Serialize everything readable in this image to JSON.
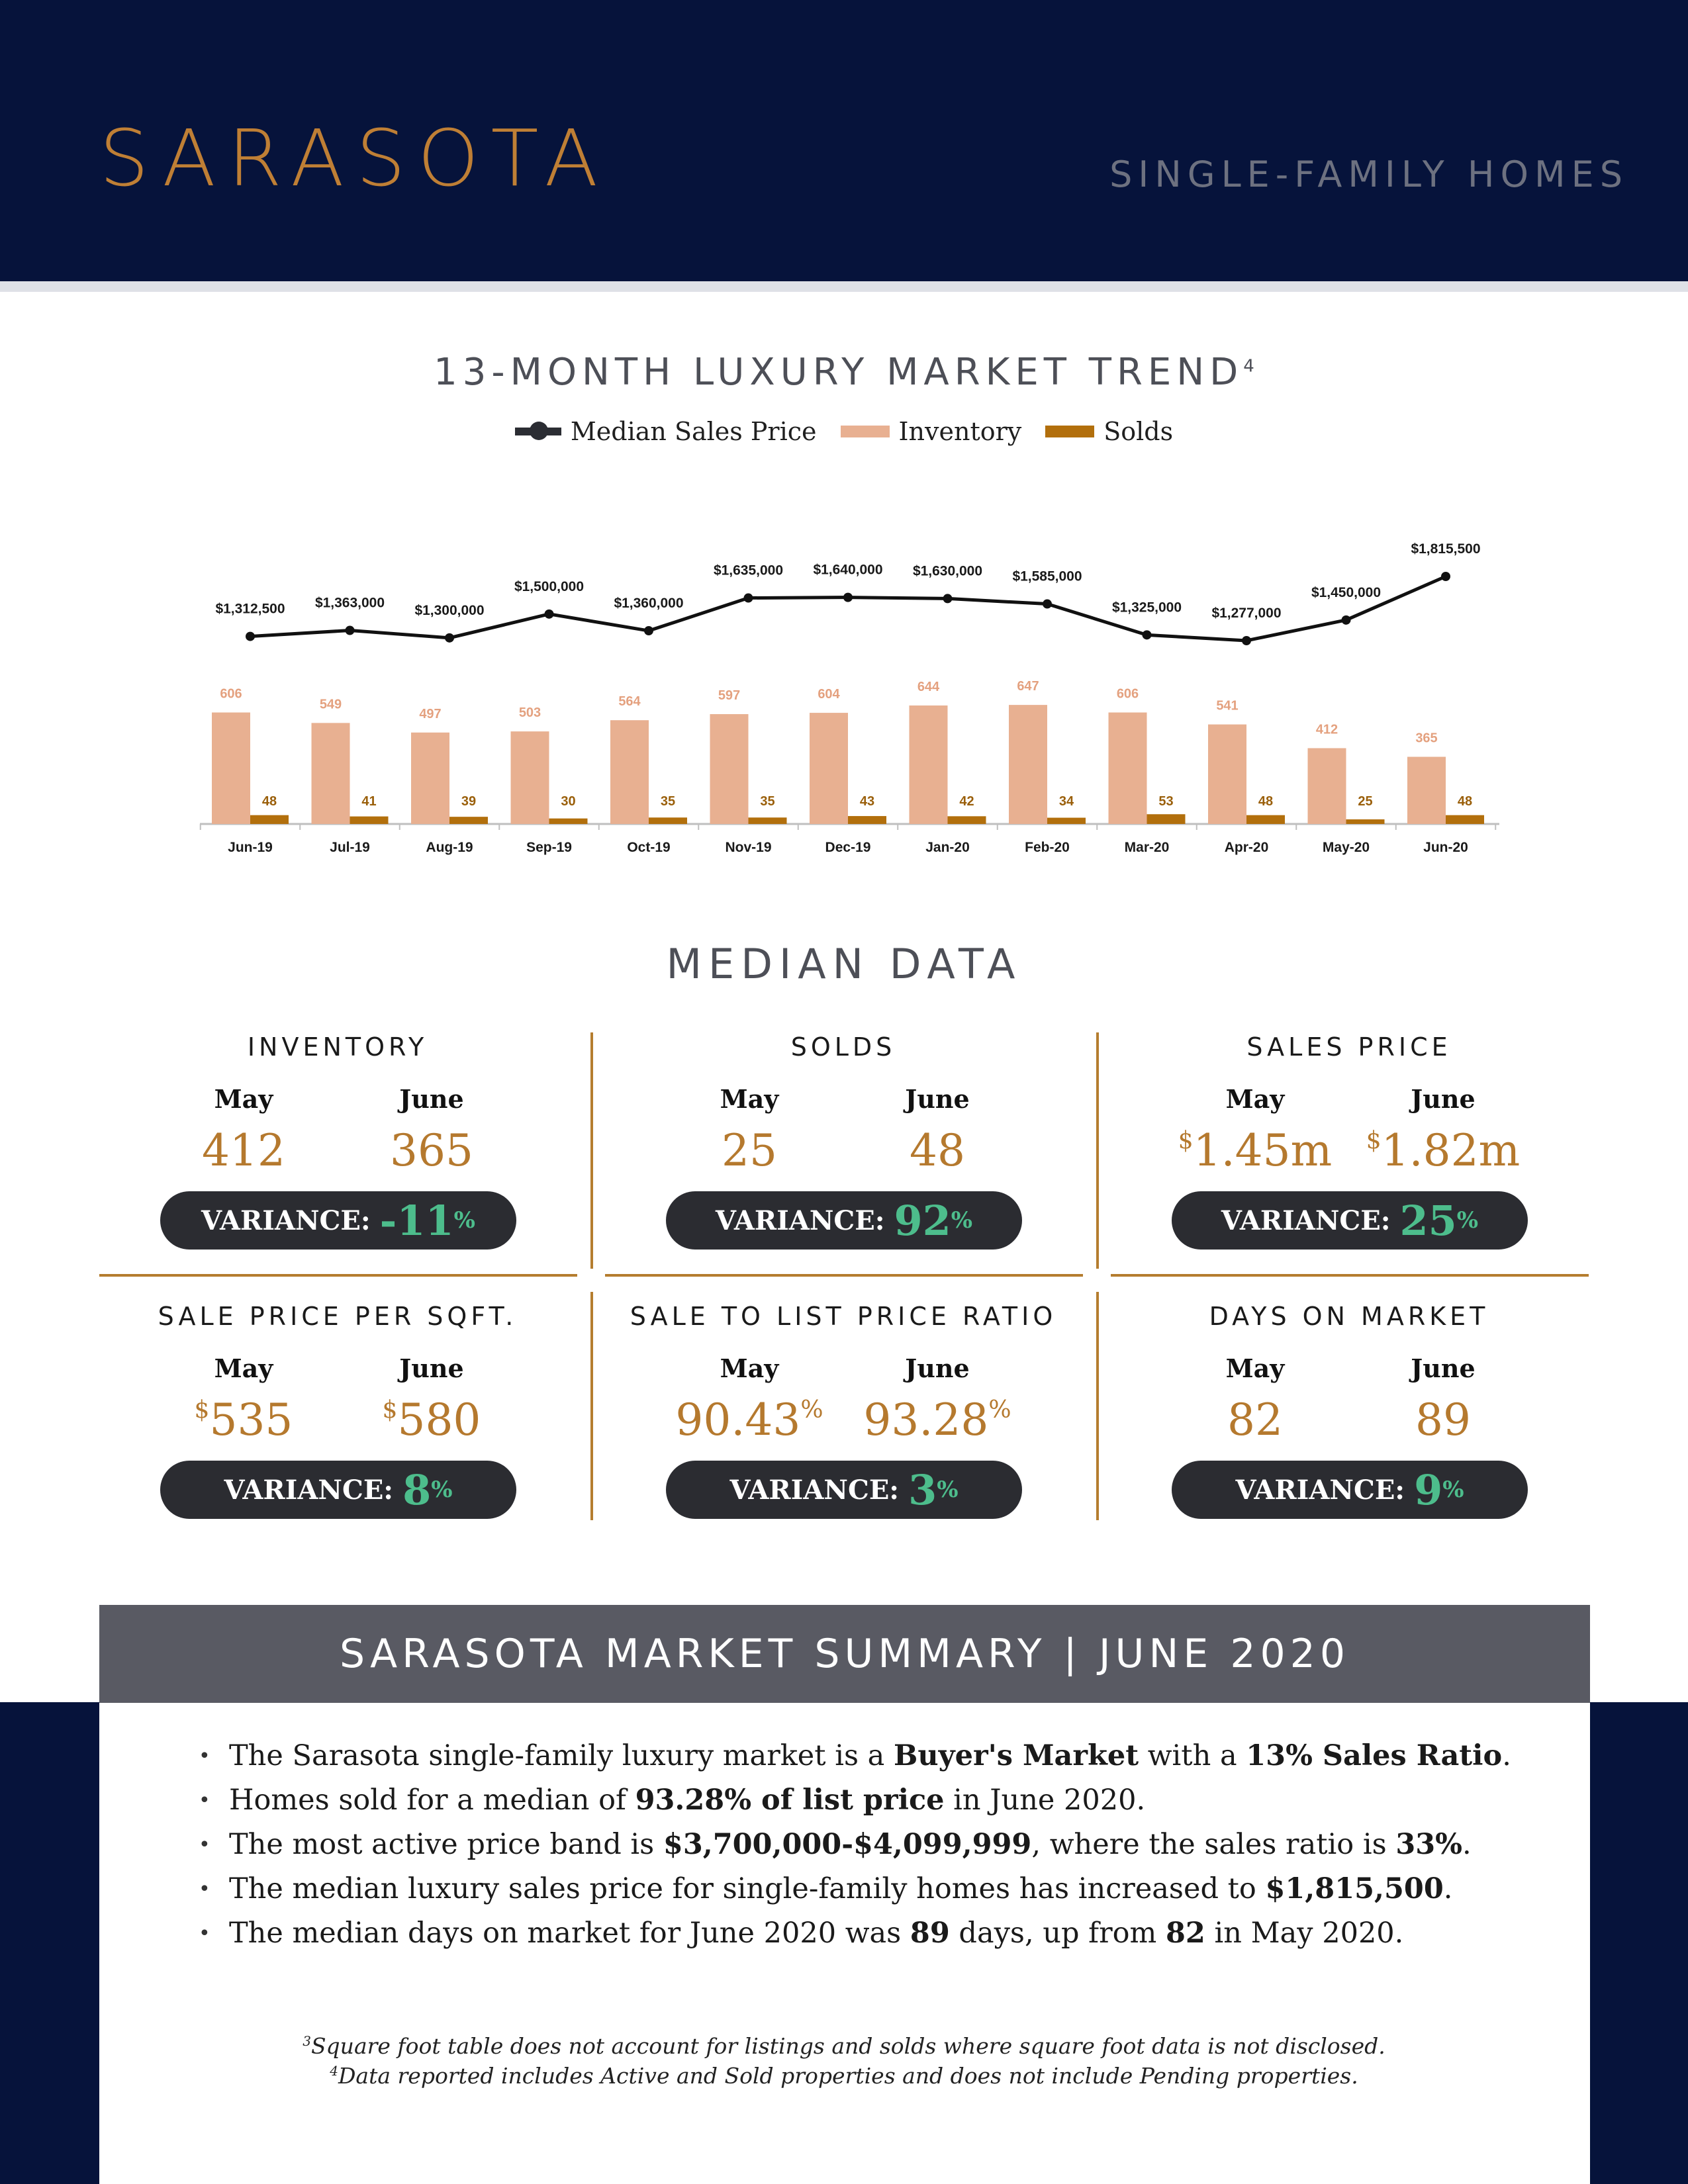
{
  "header": {
    "city": "SARASOTA",
    "subtitle": "SINGLE-FAMILY HOMES"
  },
  "trend": {
    "title": "13-MONTH LUXURY MARKET TREND",
    "title_sup": "4",
    "legend": [
      "Median Sales Price",
      "Inventory",
      "Solds"
    ]
  },
  "chart_data": {
    "type": "bar",
    "categories": [
      "Jun-19",
      "Jul-19",
      "Aug-19",
      "Sep-19",
      "Oct-19",
      "Nov-19",
      "Dec-19",
      "Jan-20",
      "Feb-20",
      "Mar-20",
      "Apr-20",
      "May-20",
      "Jun-20"
    ],
    "series": [
      {
        "name": "Median Sales Price",
        "type": "line",
        "values": [
          1312500,
          1363000,
          1300000,
          1500000,
          1360000,
          1635000,
          1640000,
          1630000,
          1585000,
          1325000,
          1277000,
          1450000,
          1815500
        ],
        "labels": [
          "$1,312,500",
          "$1,363,000",
          "$1,300,000",
          "$1,500,000",
          "$1,360,000",
          "$1,635,000",
          "$1,640,000",
          "$1,630,000",
          "$1,585,000",
          "$1,325,000",
          "$1,277,000",
          "$1,450,000",
          "$1,815,500"
        ]
      },
      {
        "name": "Inventory",
        "type": "bar",
        "values": [
          606,
          549,
          497,
          503,
          564,
          597,
          604,
          644,
          647,
          606,
          541,
          412,
          365
        ]
      },
      {
        "name": "Solds",
        "type": "bar",
        "values": [
          48,
          41,
          39,
          30,
          35,
          35,
          43,
          42,
          34,
          53,
          48,
          25,
          48
        ]
      }
    ],
    "colors": {
      "line": "#111111",
      "inventory": "#e8b091",
      "inventory_label": "#e4a17f",
      "solds": "#b26f0c",
      "solds_label": "#9a5f0a"
    },
    "grid": false,
    "legend": "top-center"
  },
  "median": {
    "title": "MEDIAN DATA",
    "month_a": "May",
    "month_b": "June",
    "variance_label": "VARIANCE:",
    "cards": [
      {
        "title": "INVENTORY",
        "a": "412",
        "b": "365",
        "var": "-11",
        "pre": "",
        "suf": ""
      },
      {
        "title": "SOLDS",
        "a": "25",
        "b": "48",
        "var": "92",
        "pre": "",
        "suf": ""
      },
      {
        "title": "SALES PRICE",
        "a": "1.45m",
        "b": "1.82m",
        "var": "25",
        "pre": "$",
        "suf": ""
      },
      {
        "title": "SALE PRICE PER SQFT.",
        "a": "535",
        "b": "580",
        "var": "8",
        "pre": "$",
        "suf": ""
      },
      {
        "title": "SALE TO LIST PRICE RATIO",
        "a": "90.43",
        "b": "93.28",
        "var": "3",
        "pre": "",
        "suf": "%"
      },
      {
        "title": "DAYS ON MARKET",
        "a": "82",
        "b": "89",
        "var": "9",
        "pre": "",
        "suf": ""
      }
    ]
  },
  "summary": {
    "title": "SARASOTA MARKET SUMMARY | JUNE 2020",
    "bullets": [
      {
        "parts": [
          {
            "t": "The Sarasota single-family luxury market is a "
          },
          {
            "t": "Buyer's Market",
            "b": true
          },
          {
            "t": " with a "
          },
          {
            "t": "13% Sales Ratio",
            "b": true
          },
          {
            "t": "."
          }
        ]
      },
      {
        "parts": [
          {
            "t": "Homes sold for a median of "
          },
          {
            "t": "93.28% of list price",
            "b": true
          },
          {
            "t": " in June 2020."
          }
        ]
      },
      {
        "parts": [
          {
            "t": "The most active price band is "
          },
          {
            "t": "$3,700,000-$4,099,999",
            "b": true
          },
          {
            "t": ", where the sales ratio is "
          },
          {
            "t": "33%",
            "b": true
          },
          {
            "t": "."
          }
        ]
      },
      {
        "parts": [
          {
            "t": "The median luxury sales price for single-family homes has increased to "
          },
          {
            "t": "$1,815,500",
            "b": true
          },
          {
            "t": "."
          }
        ]
      },
      {
        "parts": [
          {
            "t": "The median days on market for June 2020 was "
          },
          {
            "t": "89",
            "b": true
          },
          {
            "t": " days, up from "
          },
          {
            "t": "82",
            "b": true
          },
          {
            "t": " in May 2020."
          }
        ]
      }
    ]
  },
  "footnotes": [
    {
      "sup": "3",
      "text": "Square foot table does not account for listings and solds where square foot data is not disclosed."
    },
    {
      "sup": "4",
      "text": "Data reported includes Active and Sold properties and does not include Pending properties."
    }
  ]
}
